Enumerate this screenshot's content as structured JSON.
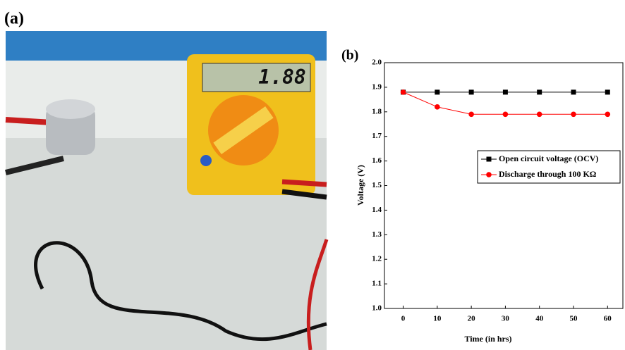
{
  "panel_labels": [
    "(a)",
    "(b)"
  ],
  "photo": {
    "meter_reading": "1.88"
  },
  "chart_data": {
    "type": "line",
    "x_label": "Time (in hrs)",
    "y_label": "Voltage (V)",
    "x": [
      0,
      10,
      20,
      30,
      40,
      50,
      60
    ],
    "series": [
      {
        "name": "Open circuit voltage (OCV)",
        "color": "#000000",
        "marker": "square",
        "values": [
          1.88,
          1.88,
          1.88,
          1.88,
          1.88,
          1.88,
          1.88
        ]
      },
      {
        "name": "Discharge through 100 KΩ",
        "color": "#ff0000",
        "marker": "circle",
        "values": [
          1.88,
          1.82,
          1.79,
          1.79,
          1.79,
          1.79,
          1.79
        ]
      }
    ],
    "xlim": [
      -5.5,
      64.5
    ],
    "xticks": [
      0,
      10,
      20,
      30,
      40,
      50,
      60
    ],
    "ylim": [
      1.0,
      2.0
    ],
    "yticks": [
      {
        "value": 1.0,
        "label": "1.0"
      },
      1.1,
      1.2,
      1.3,
      1.4,
      1.5,
      1.6,
      1.7,
      1.8,
      1.9,
      {
        "value": 2.0,
        "label": "2.0"
      }
    ],
    "legend": "right"
  }
}
